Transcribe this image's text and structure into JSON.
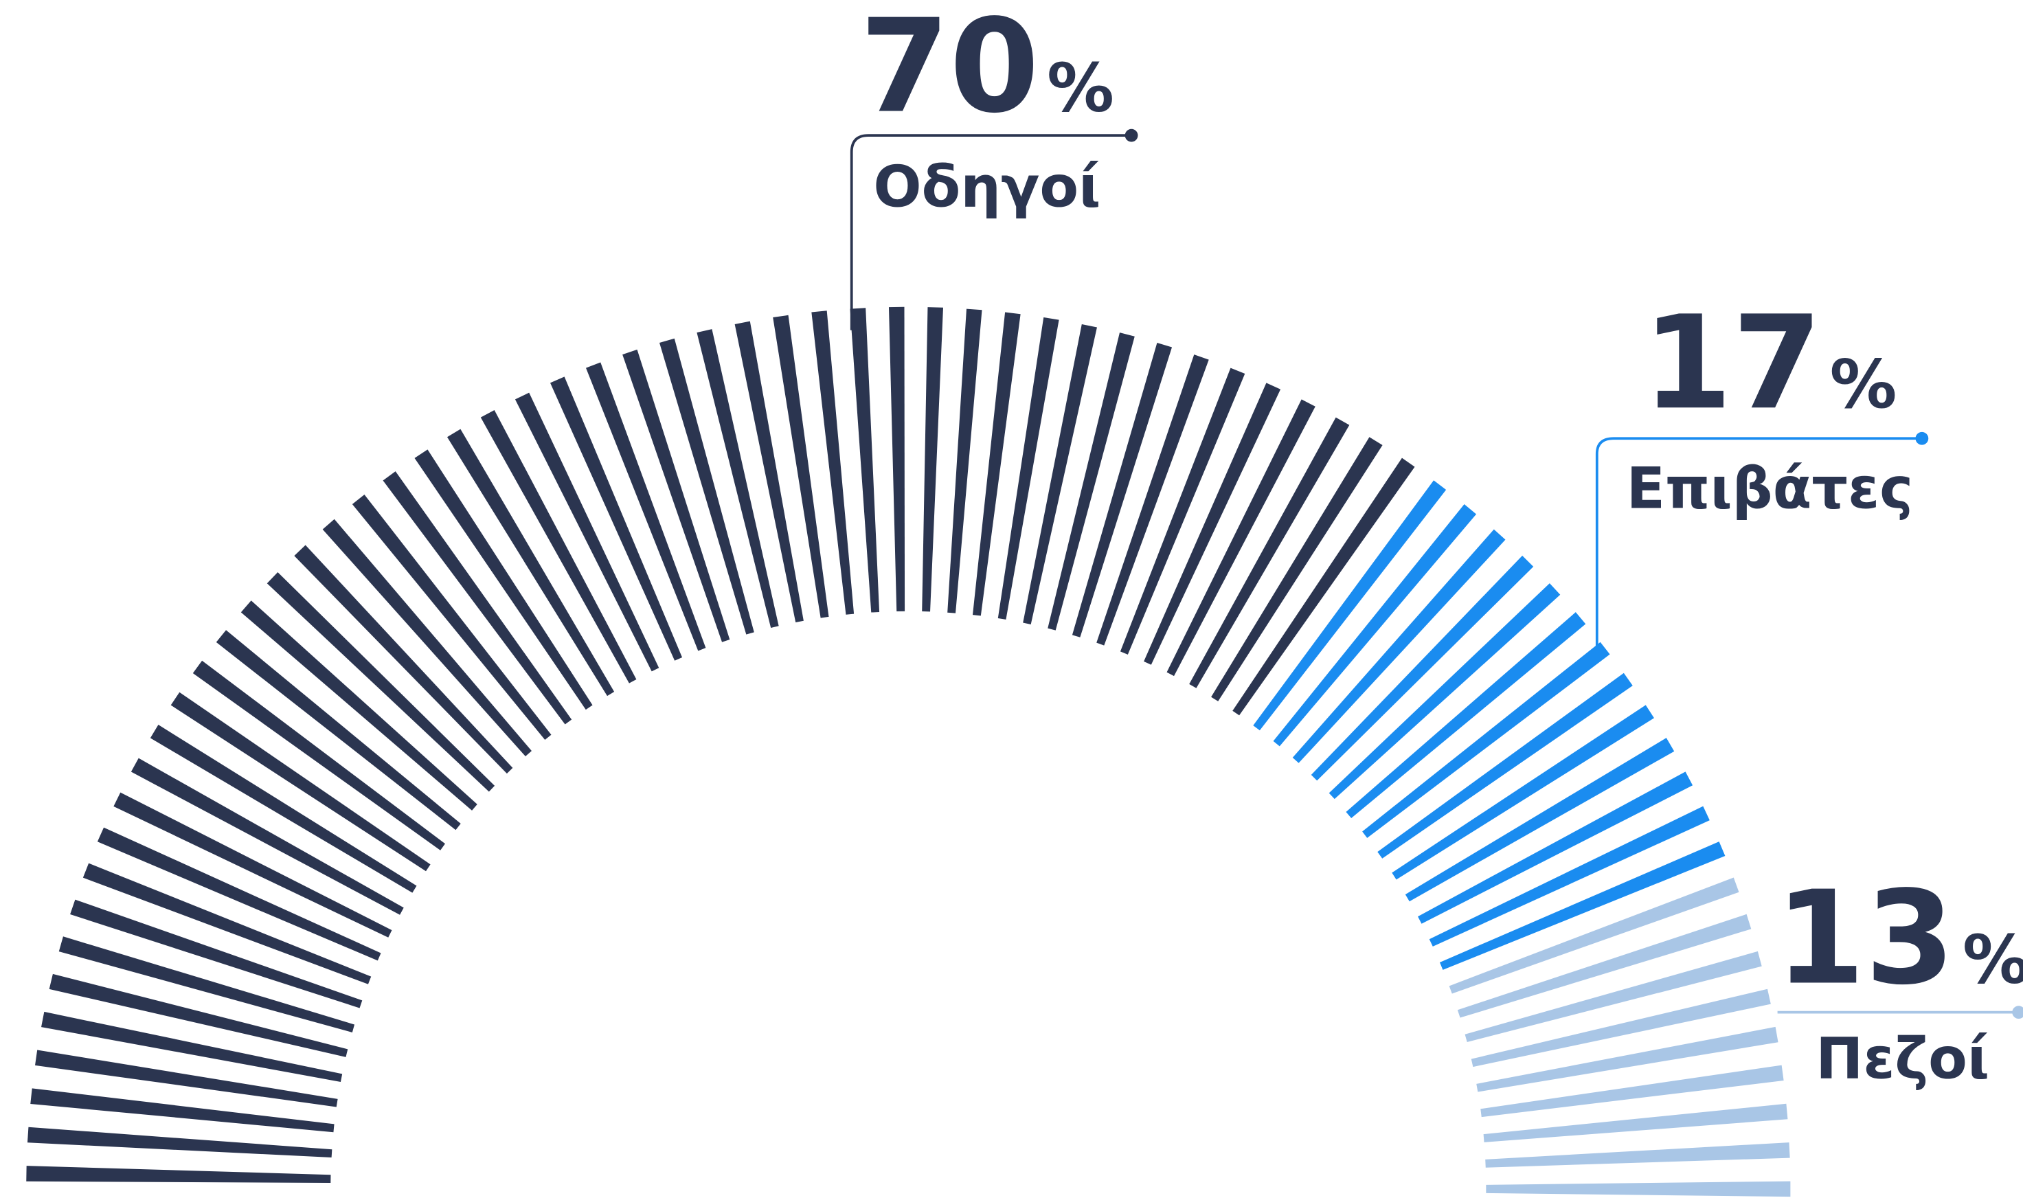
{
  "chart_data": {
    "type": "radial",
    "categories": [
      "Οδηγοί",
      "Επιβάτες",
      "Πεζοί"
    ],
    "values": [
      70,
      17,
      13
    ],
    "value_labels": [
      "70%",
      "17%",
      "13%"
    ],
    "series_colors": [
      "#2b3550",
      "#1a8cf0",
      "#a9c6e6"
    ]
  }
}
